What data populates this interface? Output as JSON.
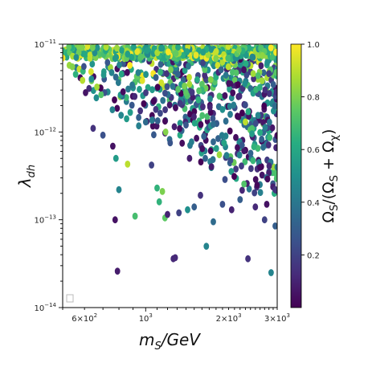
{
  "chart_data": {
    "type": "scatter",
    "xscale": "log",
    "yscale": "log",
    "xlim": [
      500,
      3000
    ],
    "ylim": [
      1e-14,
      1e-11
    ],
    "xlabel": "m_S/GeV",
    "ylabel": "λ_dh",
    "colorbar_label": "Ω_S/(Ω_S + Ω_χ)",
    "colorbar_ticks": [
      0.2,
      0.4,
      0.6,
      0.8,
      1.0
    ],
    "colorbar_tick_labels": [
      "0.2",
      "0.4",
      "0.6",
      "0.8",
      "1.0"
    ],
    "colorbar_range": [
      0.0,
      1.0
    ],
    "colormap": "viridis",
    "x_tick_labels": [
      {
        "value": 600,
        "mantissa": "6",
        "exp": "2"
      },
      {
        "value": 1000,
        "mantissa": "",
        "exp": "3"
      },
      {
        "value": 2000,
        "mantissa": "2",
        "exp": "3"
      },
      {
        "value": 3000,
        "mantissa": "3",
        "exp": "3"
      }
    ],
    "y_tick_labels": [
      {
        "value": 1e-14,
        "exp": "−14"
      },
      {
        "value": 1e-13,
        "exp": "−13"
      },
      {
        "value": 1e-12,
        "exp": "−12"
      },
      {
        "value": 1e-11,
        "exp": "−11"
      }
    ],
    "grid": false,
    "notable_points": [
      [
        645,
        1.1e-12,
        0.15
      ],
      [
        700,
        9.2e-13,
        0.25
      ],
      [
        760,
        6.9e-13,
        0.05
      ],
      [
        780,
        5e-13,
        0.55
      ],
      [
        800,
        2.2e-13,
        0.45
      ],
      [
        775,
        1e-13,
        0.05
      ],
      [
        790,
        2.6e-14,
        0.08
      ],
      [
        860,
        4.3e-13,
        0.9
      ],
      [
        915,
        1.1e-13,
        0.7
      ],
      [
        1000,
        1.3e-12,
        0.35
      ],
      [
        1050,
        4.2e-13,
        0.2
      ],
      [
        1100,
        2.3e-13,
        0.65
      ],
      [
        1120,
        1.6e-13,
        0.65
      ],
      [
        1150,
        2.1e-13,
        0.8
      ],
      [
        1175,
        1.05e-13,
        0.75
      ],
      [
        1200,
        1.15e-13,
        0.1
      ],
      [
        1260,
        3.6e-14,
        0.12
      ],
      [
        1280,
        3.7e-14,
        0.12
      ],
      [
        1320,
        1.2e-13,
        0.2
      ],
      [
        1420,
        1.3e-13,
        0.5
      ],
      [
        1500,
        1.4e-13,
        0.3
      ],
      [
        1580,
        1.9e-13,
        0.15
      ],
      [
        1660,
        5e-14,
        0.45
      ],
      [
        1760,
        9.5e-14,
        0.35
      ],
      [
        1900,
        1.5e-13,
        0.25
      ],
      [
        2050,
        1.3e-13,
        0.1
      ],
      [
        2200,
        1.7e-13,
        0.3
      ],
      [
        2350,
        3.6e-14,
        0.15
      ],
      [
        2500,
        1.4e-13,
        0.12
      ],
      [
        2750,
        1.5e-13,
        0.05
      ],
      [
        2850,
        2.5e-14,
        0.45
      ],
      [
        2950,
        8.5e-14,
        0.3
      ],
      [
        2950,
        2.2e-13,
        0.15
      ],
      [
        2700,
        1e-13,
        0.2
      ],
      [
        1850,
        5.5e-13,
        0.85
      ],
      [
        2300,
        1.3e-12,
        0.9
      ],
      [
        1900,
        1.8e-12,
        0.5
      ],
      [
        1400,
        2.8e-12,
        0.75
      ]
    ],
    "cloud": {
      "count": 950,
      "seed": 7,
      "ymax": 9e-12,
      "ymin": 2e-13
    }
  }
}
